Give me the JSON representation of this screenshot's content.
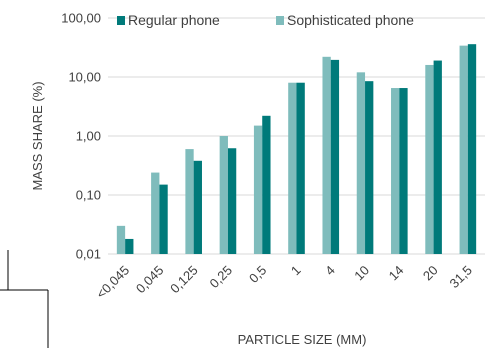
{
  "chart_data": {
    "type": "bar",
    "categories": [
      "<0,045",
      "0,045",
      "0,125",
      "0,25",
      "0,5",
      "1",
      "4",
      "10",
      "14",
      "20",
      "31,5"
    ],
    "series": [
      {
        "name": "Sophisticated phone",
        "color": "#7fbcbc",
        "values": [
          0.03,
          0.24,
          0.6,
          1.0,
          1.5,
          8.0,
          22.0,
          12.0,
          6.5,
          16.0,
          34.0
        ]
      },
      {
        "name": "Regular phone",
        "color": "#007a7a",
        "values": [
          0.018,
          0.15,
          0.38,
          0.62,
          2.2,
          8.0,
          19.5,
          8.5,
          6.5,
          19.0,
          36.0
        ]
      }
    ],
    "yscale": "log",
    "ylim": [
      0.01,
      100
    ],
    "yticks": [
      "0,01",
      "0,10",
      "1,00",
      "10,00",
      "100,00"
    ],
    "xlabel": "PARTICLE SIZE (MM)",
    "ylabel": "MASS SHARE (%)",
    "legend_order": [
      "Regular phone",
      "Sophisticated phone"
    ],
    "legend_position": "top",
    "grid": true
  }
}
